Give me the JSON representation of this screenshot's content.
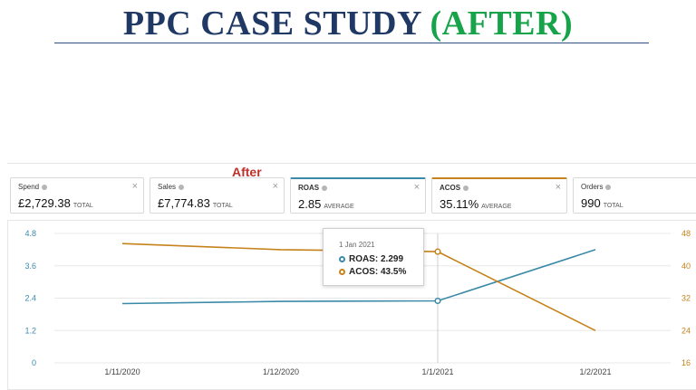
{
  "header": {
    "title_main": "PPC CASE STUDY",
    "title_accent": "(AFTER)",
    "after_label": "After"
  },
  "metrics": [
    {
      "label": "Spend",
      "value": "£2,729.38",
      "unit": "TOTAL",
      "selected": false
    },
    {
      "label": "Sales",
      "value": "£7,774.83",
      "unit": "TOTAL",
      "selected": false
    },
    {
      "label": "ROAS",
      "value": "2.85",
      "unit": "AVERAGE",
      "selected": true,
      "color": "#3b8aa8"
    },
    {
      "label": "ACOS",
      "value": "35.11%",
      "unit": "AVERAGE",
      "selected": true,
      "color": "#c6821c"
    },
    {
      "label": "Orders",
      "value": "990",
      "unit": "TOTAL",
      "selected": false
    }
  ],
  "close_glyph": "×",
  "tooltip": {
    "date": "1 Jan 2021",
    "roas": "ROAS: 2.299",
    "acos": "ACOS: 43.5%"
  },
  "chart_data": {
    "type": "line",
    "x": [
      "1/11/2020",
      "1/12/2020",
      "1/1/2021",
      "1/2/2021"
    ],
    "y_left": {
      "ticks": [
        "0",
        "1.2",
        "2.4",
        "3.6",
        "4.8"
      ],
      "range": [
        0,
        4.8
      ]
    },
    "y_right": {
      "ticks": [
        "16",
        "24",
        "32",
        "40",
        "48"
      ],
      "range": [
        16,
        48
      ]
    },
    "series": [
      {
        "name": "ROAS",
        "axis": "left",
        "color": "#3b8aa8",
        "values": [
          2.2,
          2.28,
          2.299,
          4.2
        ]
      },
      {
        "name": "ACOS",
        "axis": "right",
        "color": "#c6821c",
        "values": [
          45.5,
          44.0,
          43.5,
          24.0
        ]
      }
    ],
    "highlight_index": 2,
    "grid": true,
    "legend": "none"
  }
}
